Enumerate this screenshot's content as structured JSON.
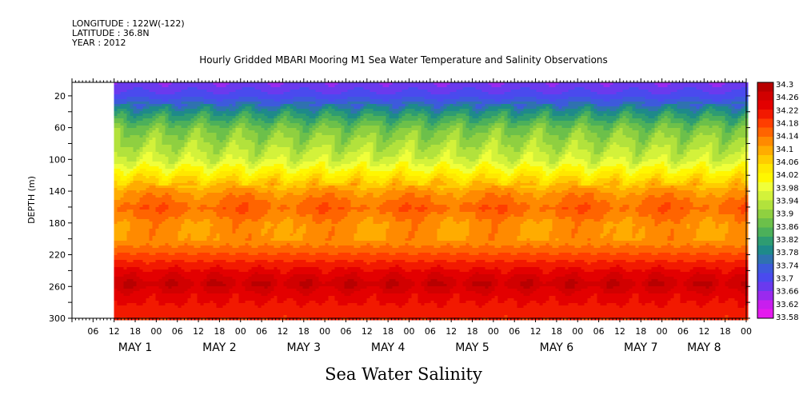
{
  "header": {
    "longitude": "LONGITUDE : 122W(-122)",
    "latitude": "LATITUDE : 36.8N",
    "year": "YEAR : 2012",
    "title": "Hourly Gridded MBARI Mooring M1 Sea Water Temperature and Salinity Observations"
  },
  "chart_data": {
    "type": "heatmap",
    "variable": "Sea Water Salinity",
    "xlabel": "Sea Water Salinity",
    "ylabel": "DEPTH (m)",
    "y_ticks": [
      20,
      60,
      100,
      140,
      180,
      220,
      260,
      300
    ],
    "y_range": [
      3,
      300
    ],
    "y_inverted": true,
    "x_hour_ticks": [
      "06",
      "12",
      "18",
      "00",
      "06",
      "12",
      "18",
      "00",
      "06",
      "12",
      "18",
      "00",
      "06",
      "12",
      "18",
      "00",
      "06",
      "12",
      "18",
      "00",
      "06",
      "12",
      "18",
      "00",
      "06",
      "12",
      "18",
      "00",
      "06",
      "12",
      "18",
      "00"
    ],
    "x_day_labels": [
      "MAY  1",
      "MAY  2",
      "MAY  3",
      "MAY  4",
      "MAY  5",
      "MAY  6",
      "MAY  7",
      "MAY  8"
    ],
    "x_day_label_hours": [
      18,
      42,
      66,
      90,
      114,
      138,
      162,
      180
    ],
    "x_range_hours": [
      0,
      192
    ],
    "data_start_hour": 12,
    "colorbar": {
      "levels": [
        "34.3",
        "34.26",
        "34.22",
        "34.18",
        "34.14",
        "34.1",
        "34.06",
        "34.02",
        "33.98",
        "33.94",
        "33.9",
        "33.86",
        "33.82",
        "33.78",
        "33.74",
        "33.7",
        "33.66",
        "33.62",
        "33.58"
      ],
      "colors": [
        "#b80000",
        "#d10000",
        "#e30000",
        "#f21900",
        "#ff3e00",
        "#ff6400",
        "#ff8a00",
        "#ffac00",
        "#ffcc00",
        "#ffe800",
        "#fff700",
        "#f0ff3a",
        "#d3f23a",
        "#b2e23c",
        "#8fd040",
        "#6cc04a",
        "#4cb05a",
        "#2e9c72",
        "#1e8a8a",
        "#2f72b0",
        "#3d5adc",
        "#4a4aee",
        "#6a3aee",
        "#9a2aee",
        "#c81eee",
        "#e41aee"
      ]
    },
    "profile": [
      {
        "depth": 5,
        "value": 33.66
      },
      {
        "depth": 20,
        "value": 33.7
      },
      {
        "depth": 40,
        "value": 33.8
      },
      {
        "depth": 60,
        "value": 33.88
      },
      {
        "depth": 80,
        "value": 33.92
      },
      {
        "depth": 100,
        "value": 33.96
      },
      {
        "depth": 120,
        "value": 34.04
      },
      {
        "depth": 140,
        "value": 34.12
      },
      {
        "depth": 160,
        "value": 34.16
      },
      {
        "depth": 180,
        "value": 34.12
      },
      {
        "depth": 200,
        "value": 34.12
      },
      {
        "depth": 220,
        "value": 34.18
      },
      {
        "depth": 240,
        "value": 34.24
      },
      {
        "depth": 255,
        "value": 34.28
      },
      {
        "depth": 270,
        "value": 34.24
      },
      {
        "depth": 300,
        "value": 34.2
      }
    ]
  }
}
